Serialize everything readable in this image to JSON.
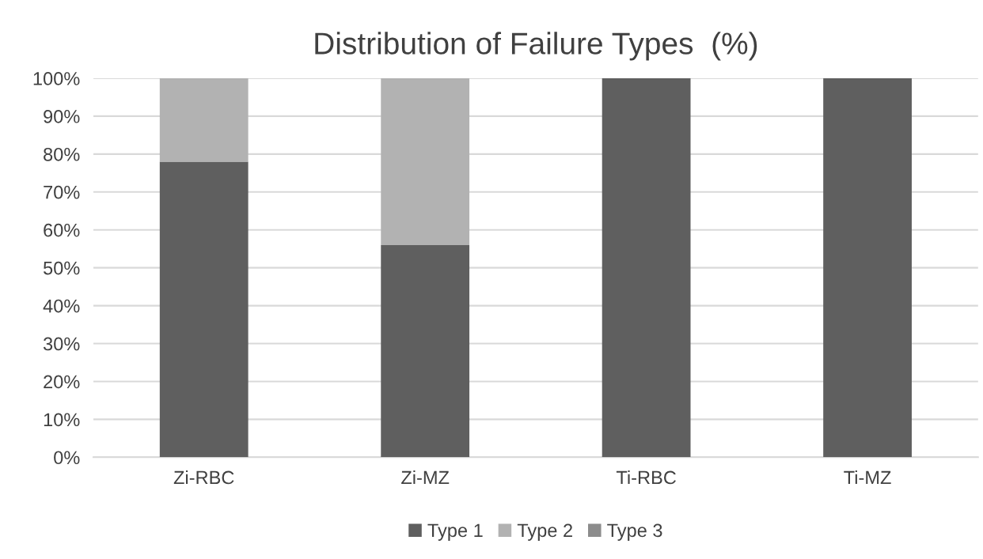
{
  "chart_data": {
    "type": "bar",
    "title": "Distribution of Failure Types  (%)",
    "stacked": true,
    "categories": [
      "Zi-RBC",
      "Zi-MZ",
      "Ti-RBC",
      "Ti-MZ"
    ],
    "series": [
      {
        "name": "Type 1",
        "color": "#5f5f5f",
        "values": [
          78,
          56,
          100,
          100
        ]
      },
      {
        "name": "Type 2",
        "color": "#b2b2b2",
        "values": [
          22,
          44,
          0,
          0
        ]
      },
      {
        "name": "Type 3",
        "color": "#8c8c8c",
        "values": [
          0,
          0,
          0,
          0
        ]
      }
    ],
    "ylim": [
      0,
      100
    ],
    "yticks": [
      {
        "value": 0,
        "label": "0%"
      },
      {
        "value": 10,
        "label": "10%"
      },
      {
        "value": 20,
        "label": "20%"
      },
      {
        "value": 30,
        "label": "30%"
      },
      {
        "value": 40,
        "label": "40%"
      },
      {
        "value": 50,
        "label": "50%"
      },
      {
        "value": 60,
        "label": "60%"
      },
      {
        "value": 70,
        "label": "70%"
      },
      {
        "value": 80,
        "label": "80%"
      },
      {
        "value": 90,
        "label": "90%"
      },
      {
        "value": 100,
        "label": "100%"
      }
    ],
    "grid": "y",
    "legend": "bottom"
  }
}
